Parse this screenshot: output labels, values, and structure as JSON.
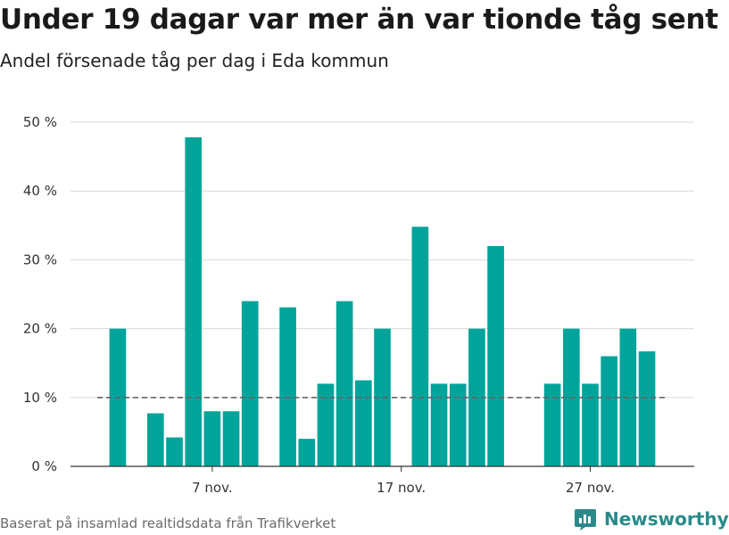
{
  "header": {
    "title": "Under 19 dagar var mer än var tionde tåg sent",
    "subtitle": "Andel försenade tåg per dag i Eda kommun"
  },
  "footer": {
    "source": "Baserat på insamlad realtidsdata från Trafikverket",
    "brand": "Newsworthy"
  },
  "colors": {
    "bar": "#00a49a",
    "grid": "#d9d9d9",
    "threshold": "#666666",
    "brand": "#2a8a8a"
  },
  "icons": {
    "brand_logo": "bar-chart-icon"
  },
  "chart_data": {
    "type": "bar",
    "title": "Under 19 dagar var mer än var tionde tåg sent",
    "subtitle": "Andel försenade tåg per dag i Eda kommun",
    "xlabel": "",
    "ylabel": "",
    "ylim": [
      0,
      50
    ],
    "y_ticks": [
      0,
      10,
      20,
      30,
      40,
      50
    ],
    "y_tick_labels": [
      "0 %",
      "10 %",
      "20 %",
      "30 %",
      "40 %",
      "50 %"
    ],
    "y_unit": "%",
    "x_tick_labels": [
      {
        "date": "2018-11-07",
        "label": "7 nov."
      },
      {
        "date": "2018-11-17",
        "label": "17 nov."
      },
      {
        "date": "2018-11-27",
        "label": "27 nov."
      }
    ],
    "x_range": [
      "2018-10-31",
      "2018-12-03"
    ],
    "categories": [
      "2018-11-02",
      "2018-11-04",
      "2018-11-05",
      "2018-11-06",
      "2018-11-07",
      "2018-11-08",
      "2018-11-09",
      "2018-11-11",
      "2018-11-12",
      "2018-11-13",
      "2018-11-14",
      "2018-11-15",
      "2018-11-16",
      "2018-11-18",
      "2018-11-19",
      "2018-11-20",
      "2018-11-21",
      "2018-11-22",
      "2018-11-25",
      "2018-11-26",
      "2018-11-27",
      "2018-11-28",
      "2018-11-29",
      "2018-11-30"
    ],
    "values": [
      20,
      7.7,
      4.2,
      47.8,
      8,
      8,
      24,
      23.1,
      4,
      12,
      24,
      12.5,
      20,
      34.8,
      12,
      12,
      20,
      32,
      12,
      20,
      12,
      16,
      20,
      16.7
    ],
    "reference_line": {
      "value": 10,
      "style": "dashed"
    },
    "grid": true,
    "legend": "none"
  }
}
